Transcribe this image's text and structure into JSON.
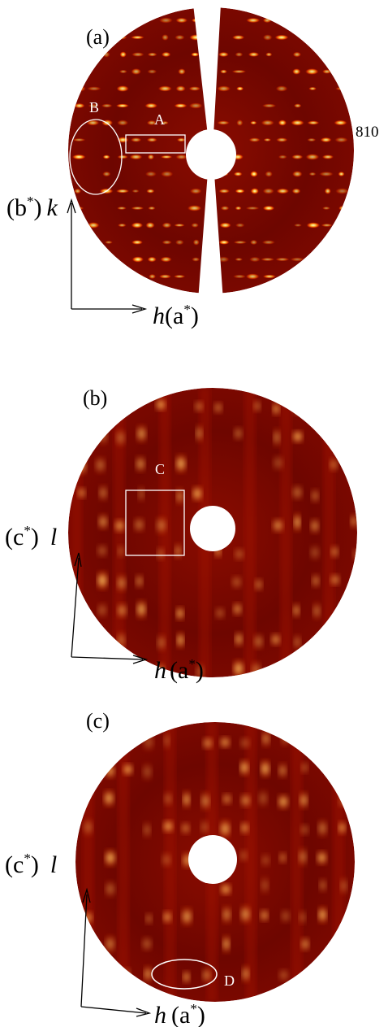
{
  "panels": [
    {
      "label": "(a)",
      "annotations": [
        "A",
        "B",
        "810"
      ],
      "vertical_axis": {
        "prefix": "(b",
        "sup": "*",
        "suffix": ")",
        "index": "k"
      },
      "horizontal_axis": {
        "index": "h",
        "prefix": "(a",
        "sup": "*",
        "suffix": ")"
      }
    },
    {
      "label": "(b)",
      "annotations": [
        "C"
      ],
      "vertical_axis": {
        "prefix": "(c",
        "sup": "*",
        "suffix": ")",
        "index": "l"
      },
      "horizontal_axis": {
        "index": "h",
        "prefix": "(a",
        "sup": "*",
        "suffix": ")"
      }
    },
    {
      "label": "(c)",
      "annotations": [
        "D"
      ],
      "vertical_axis": {
        "prefix": "(c",
        "sup": "*",
        "suffix": ")",
        "index": "l"
      },
      "horizontal_axis": {
        "index": "h",
        "prefix": "(a",
        "sup": "*",
        "suffix": ")"
      }
    }
  ]
}
